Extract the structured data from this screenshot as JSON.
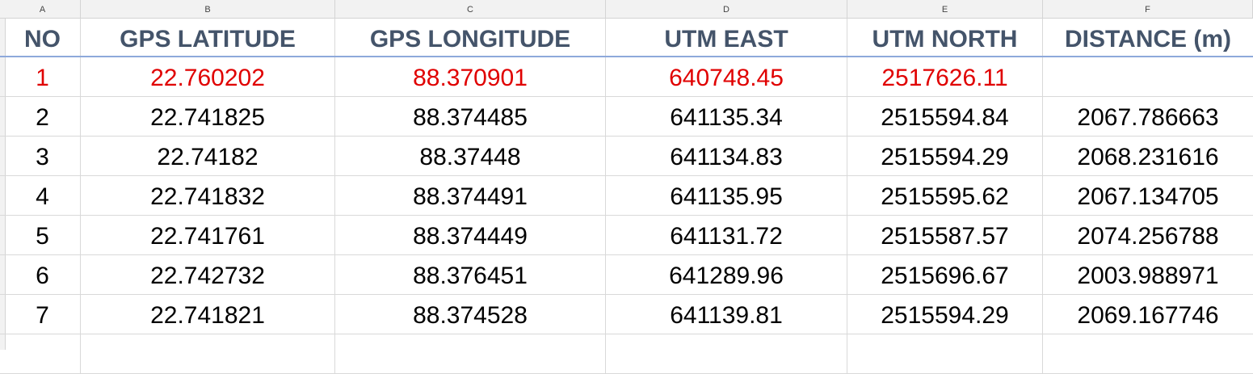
{
  "column_letters": [
    "A",
    "B",
    "C",
    "D",
    "E",
    "F"
  ],
  "headers": [
    "NO",
    "GPS LATITUDE",
    "GPS LONGITUDE",
    "UTM EAST",
    "UTM NORTH",
    "DISTANCE (m)"
  ],
  "rows": [
    [
      "1",
      "22.760202",
      "88.370901",
      "640748.45",
      "2517626.11",
      ""
    ],
    [
      "2",
      "22.741825",
      "88.374485",
      "641135.34",
      "2515594.84",
      "2067.786663"
    ],
    [
      "3",
      "22.74182",
      "88.37448",
      "641134.83",
      "2515594.29",
      "2068.231616"
    ],
    [
      "4",
      "22.741832",
      "88.374491",
      "641135.95",
      "2515595.62",
      "2067.134705"
    ],
    [
      "5",
      "22.741761",
      "88.374449",
      "641131.72",
      "2515587.57",
      "2074.256788"
    ],
    [
      "6",
      "22.742732",
      "88.376451",
      "641289.96",
      "2515696.67",
      "2003.988971"
    ],
    [
      "7",
      "22.741821",
      "88.374528",
      "641139.81",
      "2515594.29",
      "2069.167746"
    ]
  ],
  "colors": {
    "header_text": "#44546a",
    "highlight_row_text": "#e00000",
    "header_underline": "#8ea9db"
  }
}
